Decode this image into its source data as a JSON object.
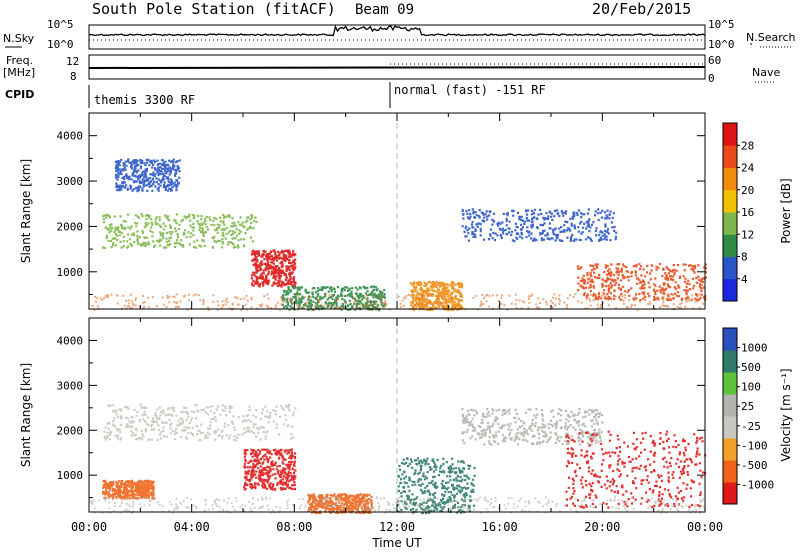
{
  "header": {
    "station": "South Pole Station (fitACF)",
    "beam": "Beam 09",
    "date": "20/Feb/2015"
  },
  "strips": {
    "nsky_label": "N.Sky",
    "nsky_ticks": [
      "10^5",
      "10^0"
    ],
    "nsearch_label": "N.Search",
    "nsearch_ticks": [
      "10^5",
      "10^0"
    ],
    "freq_label_1": "Freq.",
    "freq_label_2": "[MHz]",
    "freq_ticks": [
      "12",
      "8"
    ],
    "nave_label": "Nave",
    "nave_ticks": [
      "60",
      "0"
    ],
    "cpid_label": "CPID",
    "cpid_entries": [
      "themis 3300 RF",
      "normal (fast) -151 RF"
    ]
  },
  "colors": {
    "power": [
      "#1a28e0",
      "#2a55c8",
      "#2f8a46",
      "#7fb84a",
      "#f2c200",
      "#f08c10",
      "#e84a18",
      "#dc1414"
    ],
    "velocity": [
      "#e01818",
      "#f0641a",
      "#f0a02a",
      "#c8c8c0",
      "#b4b4ae",
      "#5ec23a",
      "#2f7a6a",
      "#2a50c0"
    ]
  },
  "chart_data": [
    {
      "type": "heatmap",
      "title": "",
      "xlabel": "",
      "ylabel": "Slant Range [km]",
      "xlim": [
        "00:00",
        "00:00"
      ],
      "ylim": [
        180,
        4500
      ],
      "x_ticks": [
        "00:00",
        "04:00",
        "08:00",
        "12:00",
        "16:00",
        "20:00",
        "00:00"
      ],
      "y_ticks": [
        1000,
        2000,
        3000,
        4000
      ],
      "colorbar": {
        "label": "Power [dB]",
        "ticks": [
          "4",
          "8",
          "12",
          "16",
          "20",
          "24",
          "28"
        ]
      },
      "scatter_regions": [
        {
          "t": [
            0.5,
            6.5
          ],
          "range": [
            1550,
            2300
          ],
          "value": "12-20 dB"
        },
        {
          "t": [
            1.0,
            3.5
          ],
          "range": [
            2800,
            3500
          ],
          "value": "4-8 dB"
        },
        {
          "t": [
            6.3,
            8.0
          ],
          "range": [
            700,
            1500
          ],
          "value": "24-28 dB"
        },
        {
          "t": [
            7.5,
            11.5
          ],
          "range": [
            180,
            700
          ],
          "value": "4-12 dB"
        },
        {
          "t": [
            12.5,
            14.5
          ],
          "range": [
            180,
            800
          ],
          "value": "12-24 dB"
        },
        {
          "t": [
            14.5,
            20.5
          ],
          "range": [
            1700,
            2400
          ],
          "value": "4-12 dB"
        },
        {
          "t": [
            19.0,
            24.0
          ],
          "range": [
            400,
            1200
          ],
          "value": "20-28 dB"
        }
      ]
    },
    {
      "type": "heatmap",
      "title": "",
      "xlabel": "Time UT",
      "ylabel": "Slant Range [km]",
      "xlim": [
        "00:00",
        "00:00"
      ],
      "ylim": [
        180,
        4500
      ],
      "x_ticks": [
        "00:00",
        "04:00",
        "08:00",
        "12:00",
        "16:00",
        "20:00",
        "00:00"
      ],
      "y_ticks": [
        1000,
        2000,
        3000,
        4000
      ],
      "colorbar": {
        "label": "Velocity [m s⁻¹]",
        "ticks": [
          "1000",
          "500",
          "100",
          "25",
          "-25",
          "-100",
          "-500",
          "-1000"
        ]
      },
      "scatter_regions": [
        {
          "t": [
            0.5,
            8.0
          ],
          "range": [
            1800,
            2600
          ],
          "value": "-25 to 25 m/s"
        },
        {
          "t": [
            0.5,
            2.5
          ],
          "range": [
            500,
            900
          ],
          "value": "-100 to -500 m/s"
        },
        {
          "t": [
            6.0,
            8.0
          ],
          "range": [
            700,
            1600
          ],
          "value": "-500 to -1000 m/s"
        },
        {
          "t": [
            8.5,
            11.0
          ],
          "range": [
            180,
            600
          ],
          "value": "-100 to -500 m/s"
        },
        {
          "t": [
            12.0,
            15.0
          ],
          "range": [
            180,
            1400
          ],
          "value": "100 to 500 m/s"
        },
        {
          "t": [
            14.5,
            20.0
          ],
          "range": [
            1700,
            2500
          ],
          "value": "-25 to 25 m/s"
        },
        {
          "t": [
            18.5,
            24.0
          ],
          "range": [
            300,
            2000
          ],
          "value": "-100 to -1000 m/s"
        }
      ]
    }
  ]
}
